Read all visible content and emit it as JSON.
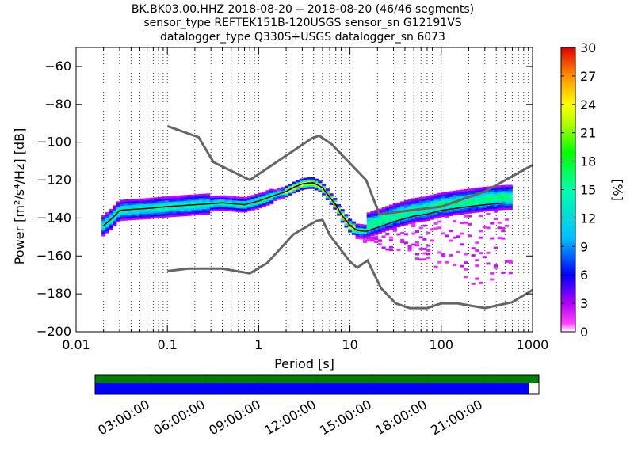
{
  "chart_data": [
    {
      "type": "heatmap",
      "title_lines": [
        "BK.BK03.00.HHZ   2018-08-20 -- 2018-08-20  (46/46 segments)",
        "sensor_type REFTEK151B-120USGS sensor_sn G12191VS",
        "datalogger_type Q330S+USGS datalogger_sn 6073"
      ],
      "xlabel": "Period [s]",
      "ylabel": "Power [m²/s⁴/Hz] [dB]",
      "xscale": "log",
      "xlim": [
        0.01,
        1000
      ],
      "ylim": [
        -200,
        -50
      ],
      "x_ticks": [
        0.01,
        0.1,
        1,
        10,
        100,
        1000
      ],
      "x_tick_labels": [
        "0.01",
        "0.1",
        "1",
        "10",
        "100",
        "1000"
      ],
      "y_ticks": [
        -200,
        -180,
        -160,
        -140,
        -120,
        -100,
        -80,
        -60
      ],
      "y_tick_labels": [
        "−200",
        "−180",
        "−160",
        "−140",
        "−120",
        "−100",
        "−80",
        "−60"
      ],
      "grid": "dotted vertical",
      "colorbar": {
        "label": "[%]",
        "range": [
          0,
          30
        ],
        "ticks": [
          0,
          3,
          6,
          9,
          12,
          15,
          18,
          21,
          24,
          27,
          30
        ]
      },
      "noise_model_high": {
        "x": [
          0.1,
          0.22,
          0.32,
          0.8,
          3.8,
          4.6,
          6.3,
          15,
          21,
          100,
          300,
          1000
        ],
        "y": [
          -91.5,
          -97.4,
          -110.5,
          -120,
          -98,
          -96.5,
          -101,
          -120,
          -138,
          -134,
          -126,
          -112
        ]
      },
      "noise_model_low": {
        "x": [
          0.1,
          0.17,
          0.4,
          0.8,
          1.24,
          2.4,
          4.3,
          5,
          6,
          10,
          12,
          15.6,
          21.9,
          31.6,
          45,
          70,
          100,
          150,
          300,
          600,
          1000
        ],
        "y": [
          -168,
          -166.7,
          -166.7,
          -169.2,
          -163.7,
          -148.6,
          -141.5,
          -141,
          -149,
          -163,
          -166.2,
          -162.4,
          -177,
          -185,
          -187.5,
          -187.5,
          -185,
          -185,
          -187.5,
          -184.4,
          -178
        ]
      },
      "median_curve": {
        "x": [
          0.02,
          0.025,
          0.03,
          0.04,
          0.06,
          0.1,
          0.2,
          0.4,
          0.7,
          1,
          1.5,
          2,
          2.5,
          3,
          3.5,
          4,
          5,
          6,
          7,
          8,
          10,
          12,
          15,
          20,
          30,
          50,
          70,
          100,
          200,
          300,
          500
        ],
        "y": [
          -144,
          -140,
          -136,
          -135.5,
          -135,
          -134,
          -133,
          -132,
          -133,
          -131,
          -128,
          -126,
          -123.5,
          -122,
          -121.5,
          -121.5,
          -124,
          -129,
          -133,
          -138,
          -144,
          -146.5,
          -147,
          -145,
          -142,
          -139,
          -138,
          -136,
          -134,
          -133,
          -132
        ]
      },
      "segments": {
        "count": 46,
        "total": 46
      }
    },
    {
      "type": "timeline",
      "tick_labels": [
        "03:00:00",
        "06:00:00",
        "09:00:00",
        "12:00:00",
        "15:00:00",
        "18:00:00",
        "21:00:00"
      ],
      "coverage_fraction": 0.977,
      "colors": {
        "top_bar": "#008000",
        "bottom_bar": "#0000ff"
      }
    }
  ]
}
